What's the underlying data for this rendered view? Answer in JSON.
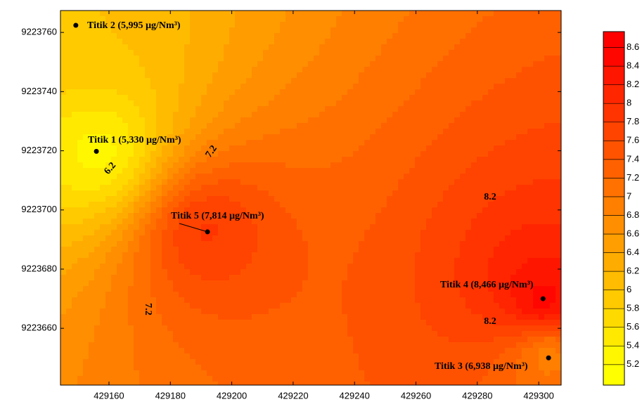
{
  "chart_data": {
    "type": "contour",
    "xlim": [
      429144.2,
      429307.3
    ],
    "ylim": [
      9223640.8,
      9223767.4
    ],
    "xticks": [
      429160,
      429180,
      429200,
      429220,
      429240,
      429260,
      429280,
      429300
    ],
    "yticks": [
      9223660,
      9223680,
      9223700,
      9223720,
      9223740,
      9223760
    ],
    "points": {
      "x": [
        429155.9,
        429149.2,
        429303.2,
        429301.4,
        429192.1
      ],
      "y": [
        9223719.8,
        9223762.4,
        9223650.0,
        9223670.0,
        9223692.6
      ],
      "values": [
        5.33,
        5.995,
        6.938,
        8.466,
        7.814
      ],
      "value_labels": [
        "Titik 1 (5,330 µg/Nm³)",
        "Titik 2 (5,995 µg/Nm³)",
        "Titik 3 (6,938 µg/Nm³)",
        "Titik 4 (8,466 µg/Nm³)",
        "Titik 5 (7,814 µg/Nm³)"
      ]
    },
    "contour_labels": [
      6.2,
      7.2,
      8.2,
      8.2,
      7.2
    ],
    "colormap": [
      "#ffff00",
      "#ff0000"
    ],
    "clim": [
      4.98,
      8.77
    ],
    "colorbar_ticks": [
      5.2,
      5.4,
      5.6,
      5.8,
      6,
      6.2,
      6.4,
      6.6,
      6.8,
      7,
      7.2,
      7.4,
      7.6,
      7.8,
      8,
      8.2,
      8.4,
      8.6
    ]
  }
}
